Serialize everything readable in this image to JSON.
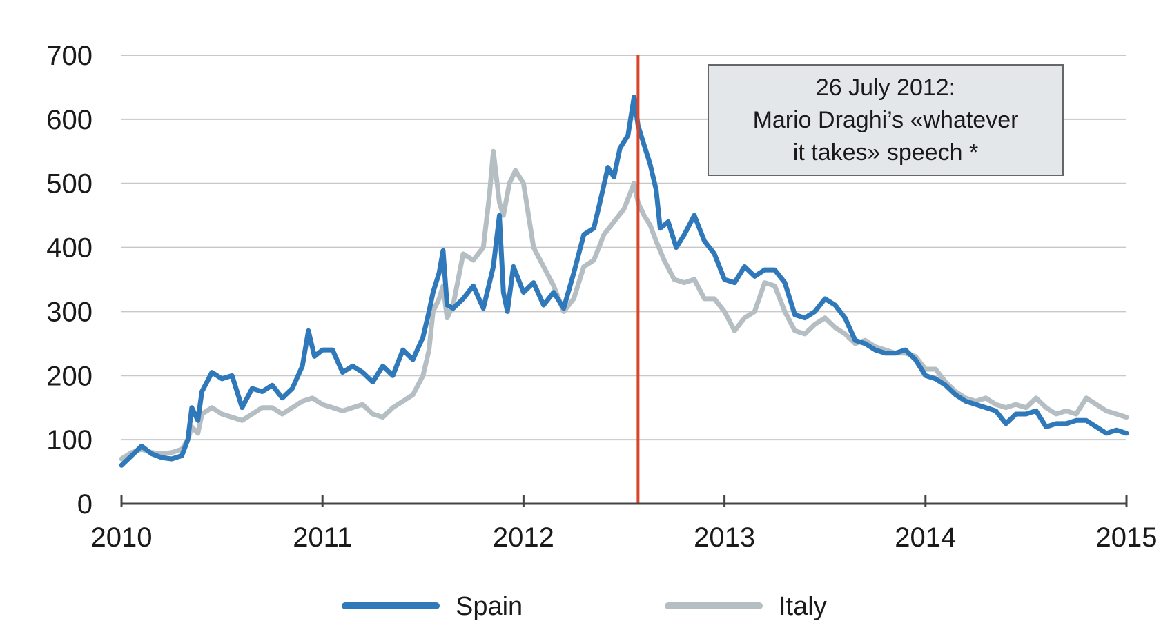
{
  "chart_data": {
    "type": "line",
    "title": "",
    "xlabel": "",
    "ylabel": "",
    "xlim": [
      2010,
      2015
    ],
    "ylim": [
      0,
      700
    ],
    "x_ticks": [
      2010,
      2011,
      2012,
      2013,
      2014,
      2015
    ],
    "x_tick_labels": [
      "2010",
      "2011",
      "2012",
      "2013",
      "2014",
      "2015"
    ],
    "y_ticks": [
      0,
      100,
      200,
      300,
      400,
      500,
      600,
      700
    ],
    "y_tick_labels": [
      "0",
      "100",
      "200",
      "300",
      "400",
      "500",
      "600",
      "700"
    ],
    "grid": "horizontal",
    "legend_position": "bottom",
    "vertical_marker": {
      "x": 2012.57,
      "color": "#d9452b"
    },
    "annotation": {
      "lines": [
        "26 July 2012:",
        "Mario Draghi’s «whatever",
        "it takes» speech *"
      ]
    },
    "series": [
      {
        "name": "Spain",
        "color": "#2f78b9",
        "points": [
          [
            2010.0,
            60
          ],
          [
            2010.05,
            75
          ],
          [
            2010.1,
            90
          ],
          [
            2010.15,
            78
          ],
          [
            2010.2,
            72
          ],
          [
            2010.25,
            70
          ],
          [
            2010.3,
            75
          ],
          [
            2010.33,
            100
          ],
          [
            2010.35,
            150
          ],
          [
            2010.38,
            130
          ],
          [
            2010.4,
            175
          ],
          [
            2010.45,
            205
          ],
          [
            2010.5,
            195
          ],
          [
            2010.55,
            200
          ],
          [
            2010.6,
            150
          ],
          [
            2010.65,
            180
          ],
          [
            2010.7,
            175
          ],
          [
            2010.75,
            185
          ],
          [
            2010.8,
            165
          ],
          [
            2010.85,
            180
          ],
          [
            2010.9,
            215
          ],
          [
            2010.93,
            270
          ],
          [
            2010.96,
            230
          ],
          [
            2011.0,
            240
          ],
          [
            2011.05,
            240
          ],
          [
            2011.1,
            205
          ],
          [
            2011.15,
            215
          ],
          [
            2011.2,
            205
          ],
          [
            2011.25,
            190
          ],
          [
            2011.3,
            215
          ],
          [
            2011.35,
            200
          ],
          [
            2011.4,
            240
          ],
          [
            2011.45,
            225
          ],
          [
            2011.5,
            260
          ],
          [
            2011.53,
            300
          ],
          [
            2011.55,
            330
          ],
          [
            2011.58,
            360
          ],
          [
            2011.6,
            395
          ],
          [
            2011.62,
            310
          ],
          [
            2011.65,
            305
          ],
          [
            2011.7,
            320
          ],
          [
            2011.75,
            340
          ],
          [
            2011.8,
            305
          ],
          [
            2011.85,
            370
          ],
          [
            2011.88,
            450
          ],
          [
            2011.9,
            330
          ],
          [
            2011.92,
            300
          ],
          [
            2011.95,
            370
          ],
          [
            2012.0,
            330
          ],
          [
            2012.05,
            345
          ],
          [
            2012.1,
            310
          ],
          [
            2012.15,
            330
          ],
          [
            2012.2,
            305
          ],
          [
            2012.25,
            360
          ],
          [
            2012.3,
            420
          ],
          [
            2012.35,
            430
          ],
          [
            2012.38,
            470
          ],
          [
            2012.42,
            525
          ],
          [
            2012.45,
            510
          ],
          [
            2012.48,
            555
          ],
          [
            2012.52,
            575
          ],
          [
            2012.55,
            635
          ],
          [
            2012.57,
            590
          ],
          [
            2012.6,
            560
          ],
          [
            2012.63,
            530
          ],
          [
            2012.66,
            490
          ],
          [
            2012.68,
            430
          ],
          [
            2012.72,
            440
          ],
          [
            2012.76,
            400
          ],
          [
            2012.8,
            420
          ],
          [
            2012.85,
            450
          ],
          [
            2012.9,
            410
          ],
          [
            2012.95,
            390
          ],
          [
            2013.0,
            350
          ],
          [
            2013.05,
            345
          ],
          [
            2013.1,
            370
          ],
          [
            2013.15,
            355
          ],
          [
            2013.2,
            365
          ],
          [
            2013.25,
            365
          ],
          [
            2013.3,
            345
          ],
          [
            2013.35,
            295
          ],
          [
            2013.4,
            290
          ],
          [
            2013.45,
            300
          ],
          [
            2013.5,
            320
          ],
          [
            2013.55,
            310
          ],
          [
            2013.6,
            290
          ],
          [
            2013.65,
            255
          ],
          [
            2013.7,
            250
          ],
          [
            2013.75,
            240
          ],
          [
            2013.8,
            235
          ],
          [
            2013.85,
            235
          ],
          [
            2013.9,
            240
          ],
          [
            2013.95,
            225
          ],
          [
            2014.0,
            200
          ],
          [
            2014.05,
            195
          ],
          [
            2014.1,
            185
          ],
          [
            2014.15,
            170
          ],
          [
            2014.2,
            160
          ],
          [
            2014.25,
            155
          ],
          [
            2014.3,
            150
          ],
          [
            2014.35,
            145
          ],
          [
            2014.4,
            125
          ],
          [
            2014.45,
            140
          ],
          [
            2014.5,
            140
          ],
          [
            2014.55,
            145
          ],
          [
            2014.6,
            120
          ],
          [
            2014.65,
            125
          ],
          [
            2014.7,
            125
          ],
          [
            2014.75,
            130
          ],
          [
            2014.8,
            130
          ],
          [
            2014.85,
            120
          ],
          [
            2014.9,
            110
          ],
          [
            2014.95,
            115
          ],
          [
            2015.0,
            110
          ]
        ]
      },
      {
        "name": "Italy",
        "color": "#b5bfc3",
        "points": [
          [
            2010.0,
            70
          ],
          [
            2010.05,
            80
          ],
          [
            2010.1,
            85
          ],
          [
            2010.15,
            80
          ],
          [
            2010.2,
            78
          ],
          [
            2010.25,
            80
          ],
          [
            2010.3,
            85
          ],
          [
            2010.33,
            100
          ],
          [
            2010.35,
            120
          ],
          [
            2010.38,
            110
          ],
          [
            2010.4,
            140
          ],
          [
            2010.45,
            150
          ],
          [
            2010.5,
            140
          ],
          [
            2010.55,
            135
          ],
          [
            2010.6,
            130
          ],
          [
            2010.65,
            140
          ],
          [
            2010.7,
            150
          ],
          [
            2010.75,
            150
          ],
          [
            2010.8,
            140
          ],
          [
            2010.85,
            150
          ],
          [
            2010.9,
            160
          ],
          [
            2010.95,
            165
          ],
          [
            2011.0,
            155
          ],
          [
            2011.05,
            150
          ],
          [
            2011.1,
            145
          ],
          [
            2011.15,
            150
          ],
          [
            2011.2,
            155
          ],
          [
            2011.25,
            140
          ],
          [
            2011.3,
            135
          ],
          [
            2011.35,
            150
          ],
          [
            2011.4,
            160
          ],
          [
            2011.45,
            170
          ],
          [
            2011.5,
            200
          ],
          [
            2011.53,
            240
          ],
          [
            2011.55,
            300
          ],
          [
            2011.58,
            320
          ],
          [
            2011.6,
            340
          ],
          [
            2011.62,
            290
          ],
          [
            2011.65,
            310
          ],
          [
            2011.7,
            390
          ],
          [
            2011.75,
            380
          ],
          [
            2011.8,
            400
          ],
          [
            2011.83,
            480
          ],
          [
            2011.85,
            550
          ],
          [
            2011.88,
            470
          ],
          [
            2011.9,
            450
          ],
          [
            2011.93,
            500
          ],
          [
            2011.96,
            520
          ],
          [
            2012.0,
            500
          ],
          [
            2012.05,
            400
          ],
          [
            2012.1,
            370
          ],
          [
            2012.15,
            340
          ],
          [
            2012.2,
            300
          ],
          [
            2012.25,
            320
          ],
          [
            2012.3,
            370
          ],
          [
            2012.35,
            380
          ],
          [
            2012.4,
            420
          ],
          [
            2012.45,
            440
          ],
          [
            2012.5,
            460
          ],
          [
            2012.55,
            500
          ],
          [
            2012.57,
            470
          ],
          [
            2012.6,
            450
          ],
          [
            2012.63,
            435
          ],
          [
            2012.66,
            410
          ],
          [
            2012.7,
            380
          ],
          [
            2012.75,
            350
          ],
          [
            2012.8,
            345
          ],
          [
            2012.85,
            350
          ],
          [
            2012.9,
            320
          ],
          [
            2012.95,
            320
          ],
          [
            2013.0,
            300
          ],
          [
            2013.05,
            270
          ],
          [
            2013.1,
            290
          ],
          [
            2013.15,
            300
          ],
          [
            2013.2,
            345
          ],
          [
            2013.25,
            340
          ],
          [
            2013.3,
            300
          ],
          [
            2013.35,
            270
          ],
          [
            2013.4,
            265
          ],
          [
            2013.45,
            280
          ],
          [
            2013.5,
            290
          ],
          [
            2013.55,
            275
          ],
          [
            2013.6,
            265
          ],
          [
            2013.65,
            250
          ],
          [
            2013.7,
            255
          ],
          [
            2013.75,
            245
          ],
          [
            2013.8,
            240
          ],
          [
            2013.85,
            235
          ],
          [
            2013.9,
            235
          ],
          [
            2013.95,
            230
          ],
          [
            2014.0,
            210
          ],
          [
            2014.05,
            210
          ],
          [
            2014.1,
            190
          ],
          [
            2014.15,
            175
          ],
          [
            2014.2,
            165
          ],
          [
            2014.25,
            160
          ],
          [
            2014.3,
            165
          ],
          [
            2014.35,
            155
          ],
          [
            2014.4,
            150
          ],
          [
            2014.45,
            155
          ],
          [
            2014.5,
            150
          ],
          [
            2014.55,
            165
          ],
          [
            2014.6,
            150
          ],
          [
            2014.65,
            140
          ],
          [
            2014.7,
            145
          ],
          [
            2014.75,
            140
          ],
          [
            2014.8,
            165
          ],
          [
            2014.85,
            155
          ],
          [
            2014.9,
            145
          ],
          [
            2014.95,
            140
          ],
          [
            2015.0,
            135
          ]
        ]
      }
    ]
  }
}
